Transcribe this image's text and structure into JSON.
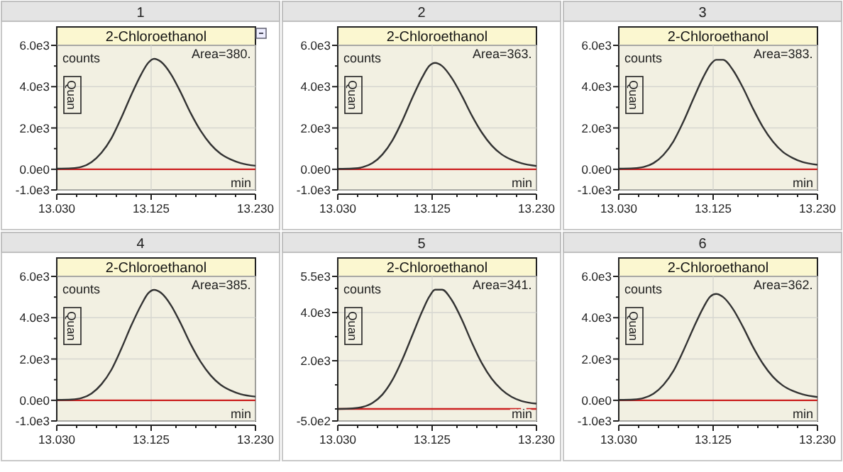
{
  "chart_data": [
    {
      "type": "line",
      "subtitle": "1",
      "title": "2-Chloroethanol",
      "ylabel": "counts",
      "xlabel": "min",
      "annotations": [
        "Area=380.",
        "Quan"
      ],
      "xlim": [
        13.03,
        13.23
      ],
      "xticks": [
        {
          "value": 13.03,
          "label": "13.030"
        },
        {
          "value": 13.05,
          "label": null
        },
        {
          "value": 13.07,
          "label": null
        },
        {
          "value": 13.09,
          "label": null
        },
        {
          "value": 13.11,
          "label": null
        },
        {
          "value": 13.125,
          "label": "13.125"
        },
        {
          "value": 13.15,
          "label": null
        },
        {
          "value": 13.17,
          "label": null
        },
        {
          "value": 13.19,
          "label": null
        },
        {
          "value": 13.21,
          "label": null
        },
        {
          "value": 13.23,
          "label": "13.230"
        }
      ],
      "ylim": [
        -1000,
        6000
      ],
      "yticks": [
        {
          "value": -1000,
          "label": "-1.0e3"
        },
        {
          "value": 0,
          "label": "0.0e0"
        },
        {
          "value": 1000,
          "label": null
        },
        {
          "value": 2000,
          "label": "2.0e3"
        },
        {
          "value": 3000,
          "label": null
        },
        {
          "value": 4000,
          "label": "4.0e3"
        },
        {
          "value": 5000,
          "label": null
        },
        {
          "value": 6000,
          "label": "6.0e3"
        }
      ],
      "grid": true,
      "ref_lines": [
        {
          "axis": "y",
          "value": 0,
          "color": "#cc2222"
        }
      ],
      "series": [
        {
          "color": "#333333",
          "x": [
            13.03,
            13.045,
            13.055,
            13.065,
            13.075,
            13.085,
            13.095,
            13.105,
            13.115,
            13.122,
            13.128,
            13.135,
            13.145,
            13.155,
            13.165,
            13.175,
            13.185,
            13.195,
            13.205,
            13.215,
            13.23
          ],
          "values": [
            30,
            50,
            120,
            350,
            800,
            1500,
            2500,
            3600,
            4600,
            5150,
            5350,
            5200,
            4600,
            3700,
            2700,
            1850,
            1200,
            750,
            480,
            300,
            170
          ]
        }
      ]
    },
    {
      "type": "line",
      "subtitle": "2",
      "title": "2-Chloroethanol",
      "ylabel": "counts",
      "xlabel": "min",
      "annotations": [
        "Area=363.",
        "Quan"
      ],
      "xlim": [
        13.03,
        13.23
      ],
      "xticks": [
        {
          "value": 13.03,
          "label": "13.030"
        },
        {
          "value": 13.05,
          "label": null
        },
        {
          "value": 13.07,
          "label": null
        },
        {
          "value": 13.09,
          "label": null
        },
        {
          "value": 13.11,
          "label": null
        },
        {
          "value": 13.125,
          "label": "13.125"
        },
        {
          "value": 13.15,
          "label": null
        },
        {
          "value": 13.17,
          "label": null
        },
        {
          "value": 13.19,
          "label": null
        },
        {
          "value": 13.21,
          "label": null
        },
        {
          "value": 13.23,
          "label": "13.230"
        }
      ],
      "ylim": [
        -1000,
        6000
      ],
      "yticks": [
        {
          "value": -1000,
          "label": "-1.0e3"
        },
        {
          "value": 0,
          "label": "0.0e0"
        },
        {
          "value": 1000,
          "label": null
        },
        {
          "value": 2000,
          "label": "2.0e3"
        },
        {
          "value": 3000,
          "label": null
        },
        {
          "value": 4000,
          "label": "4.0e3"
        },
        {
          "value": 5000,
          "label": null
        },
        {
          "value": 6000,
          "label": "6.0e3"
        }
      ],
      "grid": true,
      "ref_lines": [
        {
          "axis": "y",
          "value": 0,
          "color": "#cc2222"
        }
      ],
      "series": [
        {
          "color": "#333333",
          "x": [
            13.03,
            13.045,
            13.055,
            13.065,
            13.075,
            13.085,
            13.095,
            13.105,
            13.115,
            13.122,
            13.128,
            13.135,
            13.145,
            13.155,
            13.165,
            13.175,
            13.185,
            13.195,
            13.205,
            13.215,
            13.23
          ],
          "values": [
            20,
            40,
            100,
            300,
            720,
            1400,
            2350,
            3450,
            4450,
            5000,
            5150,
            5000,
            4400,
            3550,
            2600,
            1780,
            1150,
            720,
            460,
            290,
            160
          ]
        }
      ]
    },
    {
      "type": "line",
      "subtitle": "3",
      "title": "2-Chloroethanol",
      "ylabel": "counts",
      "xlabel": "min",
      "annotations": [
        "Area=383.",
        "Quan"
      ],
      "xlim": [
        13.03,
        13.23
      ],
      "xticks": [
        {
          "value": 13.03,
          "label": "13.030"
        },
        {
          "value": 13.05,
          "label": null
        },
        {
          "value": 13.07,
          "label": null
        },
        {
          "value": 13.09,
          "label": null
        },
        {
          "value": 13.11,
          "label": null
        },
        {
          "value": 13.125,
          "label": "13.125"
        },
        {
          "value": 13.15,
          "label": null
        },
        {
          "value": 13.17,
          "label": null
        },
        {
          "value": 13.19,
          "label": null
        },
        {
          "value": 13.21,
          "label": null
        },
        {
          "value": 13.23,
          "label": "13.230"
        }
      ],
      "ylim": [
        -1000,
        6000
      ],
      "yticks": [
        {
          "value": -1000,
          "label": "-1.0e3"
        },
        {
          "value": 0,
          "label": "0.0e0"
        },
        {
          "value": 1000,
          "label": null
        },
        {
          "value": 2000,
          "label": "2.0e3"
        },
        {
          "value": 3000,
          "label": null
        },
        {
          "value": 4000,
          "label": "4.0e3"
        },
        {
          "value": 5000,
          "label": null
        },
        {
          "value": 6000,
          "label": "6.0e3"
        }
      ],
      "grid": true,
      "ref_lines": [
        {
          "axis": "y",
          "value": 0,
          "color": "#cc2222"
        }
      ],
      "series": [
        {
          "color": "#333333",
          "x": [
            13.03,
            13.045,
            13.055,
            13.065,
            13.075,
            13.085,
            13.095,
            13.105,
            13.115,
            13.122,
            13.128,
            13.135,
            13.145,
            13.155,
            13.165,
            13.175,
            13.185,
            13.195,
            13.205,
            13.215,
            13.23
          ],
          "values": [
            30,
            50,
            110,
            300,
            700,
            1350,
            2300,
            3400,
            4450,
            5050,
            5300,
            5300,
            4800,
            3950,
            2950,
            2050,
            1350,
            850,
            550,
            350,
            220
          ]
        }
      ]
    },
    {
      "type": "line",
      "subtitle": "4",
      "title": "2-Chloroethanol",
      "ylabel": "counts",
      "xlabel": "min",
      "annotations": [
        "Area=385.",
        "Quan"
      ],
      "xlim": [
        13.03,
        13.23
      ],
      "xticks": [
        {
          "value": 13.03,
          "label": "13.030"
        },
        {
          "value": 13.05,
          "label": null
        },
        {
          "value": 13.07,
          "label": null
        },
        {
          "value": 13.09,
          "label": null
        },
        {
          "value": 13.11,
          "label": null
        },
        {
          "value": 13.125,
          "label": "13.125"
        },
        {
          "value": 13.15,
          "label": null
        },
        {
          "value": 13.17,
          "label": null
        },
        {
          "value": 13.19,
          "label": null
        },
        {
          "value": 13.21,
          "label": null
        },
        {
          "value": 13.23,
          "label": "13.230"
        }
      ],
      "ylim": [
        -1000,
        6000
      ],
      "yticks": [
        {
          "value": -1000,
          "label": "-1.0e3"
        },
        {
          "value": 0,
          "label": "0.0e0"
        },
        {
          "value": 1000,
          "label": null
        },
        {
          "value": 2000,
          "label": "2.0e3"
        },
        {
          "value": 3000,
          "label": null
        },
        {
          "value": 4000,
          "label": "4.0e3"
        },
        {
          "value": 5000,
          "label": null
        },
        {
          "value": 6000,
          "label": "6.0e3"
        }
      ],
      "grid": true,
      "ref_lines": [
        {
          "axis": "y",
          "value": 0,
          "color": "#cc2222"
        }
      ],
      "series": [
        {
          "color": "#333333",
          "x": [
            13.03,
            13.045,
            13.055,
            13.065,
            13.075,
            13.085,
            13.095,
            13.105,
            13.115,
            13.122,
            13.128,
            13.135,
            13.145,
            13.155,
            13.165,
            13.175,
            13.185,
            13.195,
            13.205,
            13.215,
            13.23
          ],
          "values": [
            20,
            40,
            110,
            330,
            780,
            1480,
            2500,
            3620,
            4620,
            5180,
            5350,
            5200,
            4600,
            3700,
            2700,
            1850,
            1200,
            750,
            480,
            300,
            180
          ]
        }
      ]
    },
    {
      "type": "line",
      "subtitle": "5",
      "title": "2-Chloroethanol",
      "ylabel": "counts",
      "xlabel": "min",
      "annotations": [
        "Area=341.",
        "Quan"
      ],
      "xlim": [
        13.03,
        13.23
      ],
      "xticks": [
        {
          "value": 13.03,
          "label": "13.030"
        },
        {
          "value": 13.05,
          "label": null
        },
        {
          "value": 13.07,
          "label": null
        },
        {
          "value": 13.09,
          "label": null
        },
        {
          "value": 13.11,
          "label": null
        },
        {
          "value": 13.125,
          "label": "13.125"
        },
        {
          "value": 13.15,
          "label": null
        },
        {
          "value": 13.17,
          "label": null
        },
        {
          "value": 13.19,
          "label": null
        },
        {
          "value": 13.21,
          "label": null
        },
        {
          "value": 13.23,
          "label": "13.230"
        }
      ],
      "ylim": [
        -500,
        5500
      ],
      "yticks": [
        {
          "value": -500,
          "label": "-5.0e2"
        },
        {
          "value": 0,
          "label": null
        },
        {
          "value": 1000,
          "label": null
        },
        {
          "value": 2000,
          "label": "2.0e3"
        },
        {
          "value": 3000,
          "label": null
        },
        {
          "value": 4000,
          "label": "4.0e3"
        },
        {
          "value": 5000,
          "label": null
        },
        {
          "value": 5500,
          "label": "5.5e3"
        }
      ],
      "grid": true,
      "ref_lines": [
        {
          "axis": "y",
          "value": 0,
          "color": "#cc2222"
        }
      ],
      "series": [
        {
          "color": "#333333",
          "x": [
            13.03,
            13.045,
            13.055,
            13.065,
            13.075,
            13.085,
            13.095,
            13.105,
            13.115,
            13.122,
            13.128,
            13.135,
            13.145,
            13.155,
            13.165,
            13.175,
            13.185,
            13.195,
            13.205,
            13.215,
            13.23
          ],
          "values": [
            0,
            20,
            80,
            250,
            600,
            1200,
            2050,
            3050,
            4050,
            4650,
            4950,
            4950,
            4500,
            3700,
            2750,
            1900,
            1250,
            800,
            500,
            330,
            220
          ]
        }
      ]
    },
    {
      "type": "line",
      "subtitle": "6",
      "title": "2-Chloroethanol",
      "ylabel": "counts",
      "xlabel": "min",
      "annotations": [
        "Area=362.",
        "Quan"
      ],
      "xlim": [
        13.03,
        13.23
      ],
      "xticks": [
        {
          "value": 13.03,
          "label": "13.030"
        },
        {
          "value": 13.05,
          "label": null
        },
        {
          "value": 13.07,
          "label": null
        },
        {
          "value": 13.09,
          "label": null
        },
        {
          "value": 13.11,
          "label": null
        },
        {
          "value": 13.125,
          "label": "13.125"
        },
        {
          "value": 13.15,
          "label": null
        },
        {
          "value": 13.17,
          "label": null
        },
        {
          "value": 13.19,
          "label": null
        },
        {
          "value": 13.21,
          "label": null
        },
        {
          "value": 13.23,
          "label": "13.230"
        }
      ],
      "ylim": [
        -1000,
        6000
      ],
      "yticks": [
        {
          "value": -1000,
          "label": "-1.0e3"
        },
        {
          "value": 0,
          "label": "0.0e0"
        },
        {
          "value": 1000,
          "label": null
        },
        {
          "value": 2000,
          "label": "2.0e3"
        },
        {
          "value": 3000,
          "label": null
        },
        {
          "value": 4000,
          "label": "4.0e3"
        },
        {
          "value": 5000,
          "label": null
        },
        {
          "value": 6000,
          "label": "6.0e3"
        }
      ],
      "grid": true,
      "ref_lines": [
        {
          "axis": "y",
          "value": 0,
          "color": "#cc2222"
        }
      ],
      "series": [
        {
          "color": "#333333",
          "x": [
            13.03,
            13.045,
            13.055,
            13.065,
            13.075,
            13.085,
            13.095,
            13.105,
            13.115,
            13.122,
            13.128,
            13.135,
            13.145,
            13.155,
            13.165,
            13.175,
            13.185,
            13.195,
            13.205,
            13.215,
            13.23
          ],
          "values": [
            20,
            40,
            110,
            320,
            750,
            1420,
            2400,
            3480,
            4480,
            5020,
            5150,
            5000,
            4420,
            3560,
            2600,
            1780,
            1150,
            720,
            460,
            290,
            160
          ]
        }
      ]
    }
  ]
}
